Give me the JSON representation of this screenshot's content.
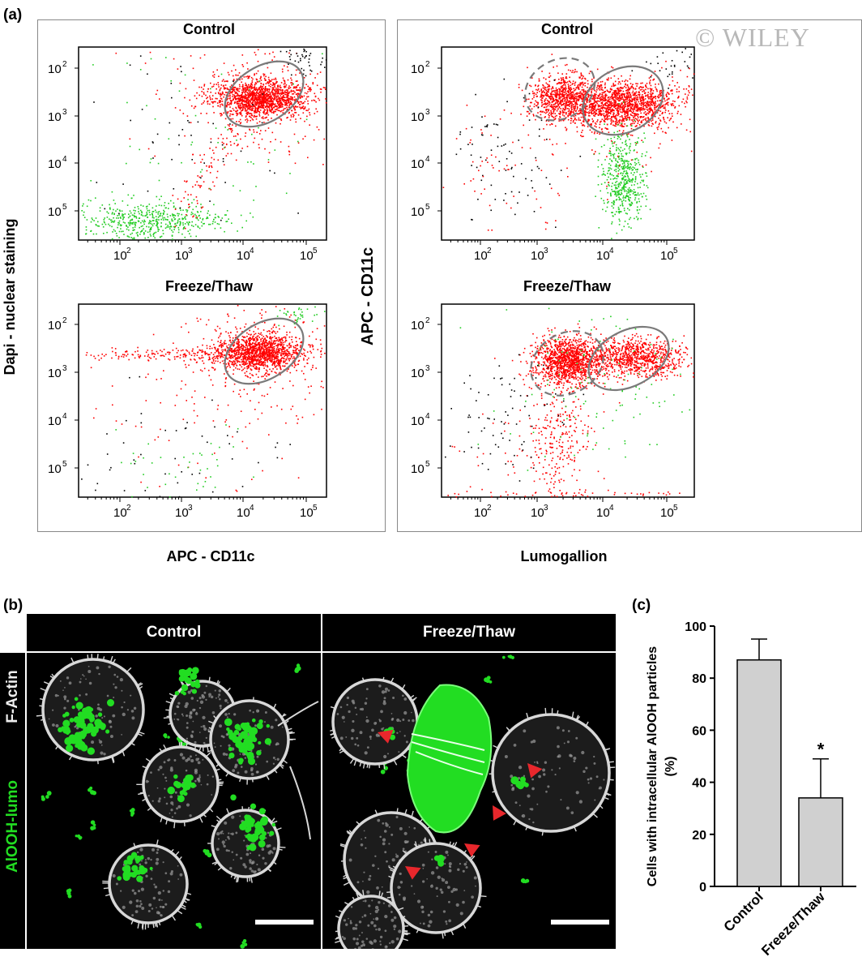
{
  "watermark": "© WILEY",
  "panel_a": {
    "letter": "(a)",
    "y_label_left": "Dapi - nuclear staining",
    "y_label_right": "APC - CD11c",
    "x_label_left": "APC - CD11c",
    "x_label_right": "Lumogallion",
    "plots": [
      {
        "title": "Control"
      },
      {
        "title": "Freeze/Thaw"
      },
      {
        "title": "Control"
      },
      {
        "title": "Freeze/Thaw"
      }
    ],
    "tick_labels": [
      "10",
      "10",
      "10",
      "10"
    ],
    "tick_exponents": [
      "2",
      "3",
      "4",
      "5"
    ],
    "colors": {
      "red": "#ff0000",
      "green": "#22cc22",
      "black": "#000000",
      "gate": "#7a7a7a"
    }
  },
  "panel_b": {
    "letter": "(b)",
    "headers": [
      "Control",
      "Freeze/Thaw"
    ],
    "side_label_top": "F-Actin",
    "side_label_bottom": "AlOOH-lumo",
    "colors": {
      "actin": "#d8d8d8",
      "lumo": "#22dd22",
      "arrow": "#e8272c"
    }
  },
  "chart_data": {
    "type": "bar",
    "panel_letter": "(c)",
    "categories": [
      "Control",
      "Freeze/Thaw"
    ],
    "values": [
      87,
      34
    ],
    "errors": [
      8,
      15
    ],
    "annotations": [
      "",
      "*"
    ],
    "xlabel": "",
    "ylabel": "Cells with intracellular AlOOH particles (%)",
    "ylim": [
      0,
      100
    ],
    "yticks": [
      "0",
      "20",
      "40",
      "60",
      "80",
      "100"
    ],
    "grid": false,
    "bar_color": "#d0d0d0"
  }
}
